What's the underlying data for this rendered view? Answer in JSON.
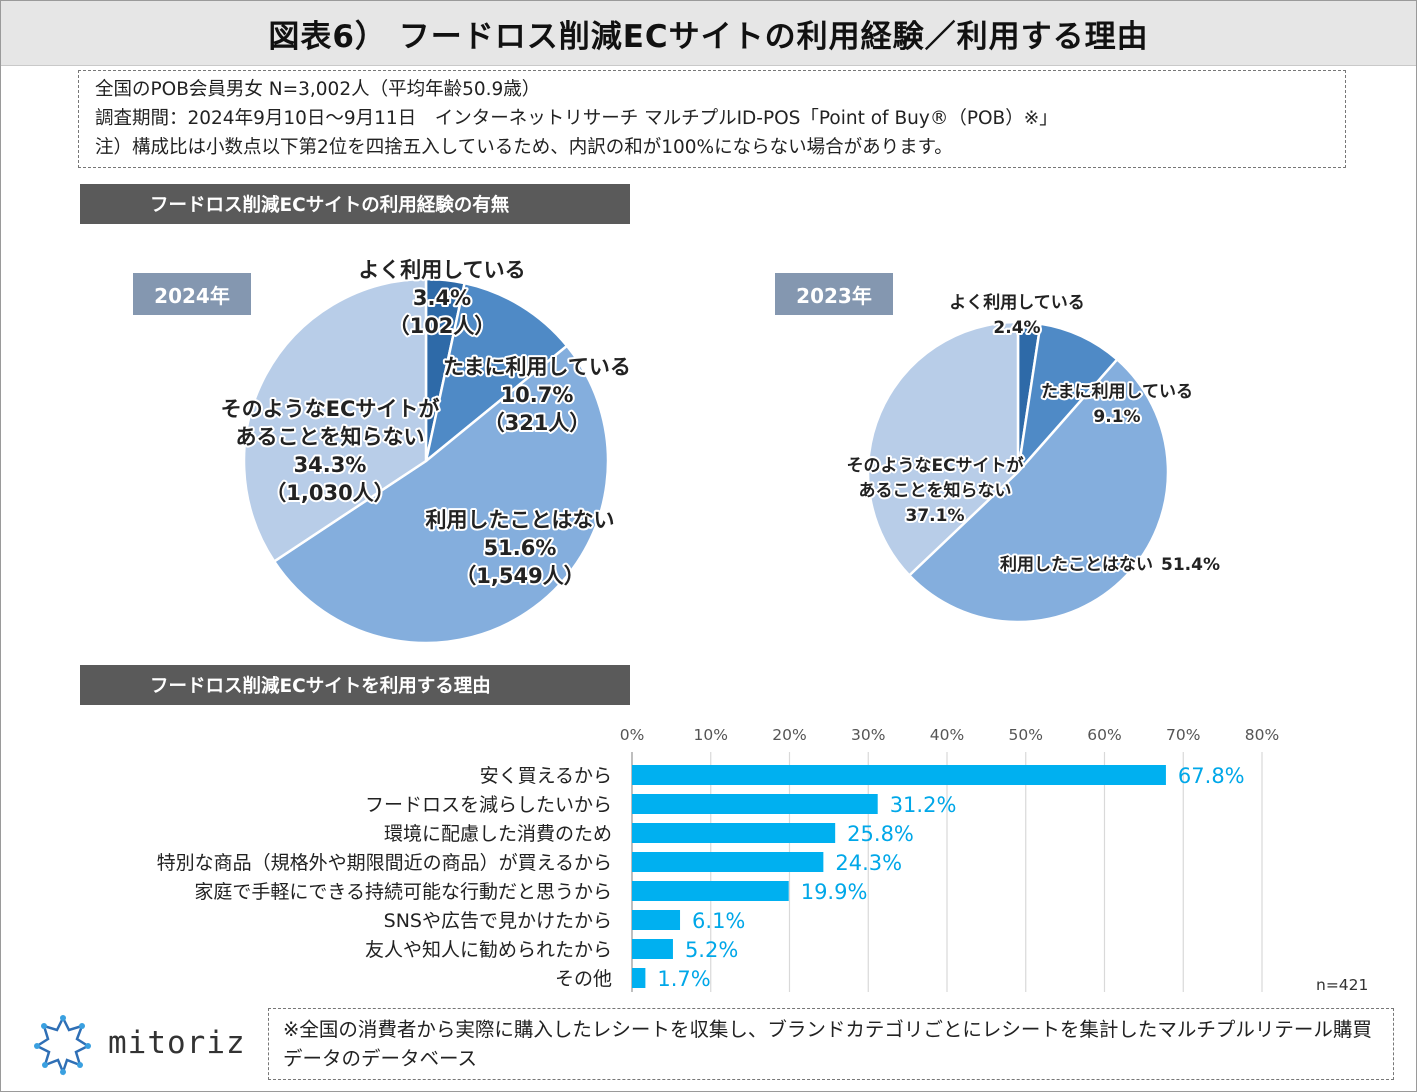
{
  "title": "図表6） フードロス削減ECサイトの利用経験／利用する理由",
  "info": {
    "line1": "全国のPOB会員男女 N=3,002人（平均年齢50.9歳）",
    "line2": "調査期間：2024年9月10日～9月11日　インターネットリサーチ マルチプルID-POS「Point of Buy®（POB）※」",
    "line3": "注）構成比は小数点以下第2位を四捨五入しているため、内訳の和が100%にならない場合があります。"
  },
  "section1_title": "フードロス削減ECサイトの利用経験の有無",
  "section2_title": "フードロス削減ECサイトを利用する理由",
  "colors": {
    "pie_often": "#2e6aa8",
    "pie_sometimes": "#4f8ac6",
    "pie_never": "#84aedd",
    "pie_unaware": "#b8cde8",
    "bar": "#00b0f0",
    "header_bg": "#5a5a5a",
    "year_bg": "#8497b0"
  },
  "chart_data": [
    {
      "type": "pie",
      "title": "2024年",
      "slices": [
        {
          "label": "よく利用している",
          "value": 3.4,
          "display": "3.4%",
          "count": "（102人）"
        },
        {
          "label": "たまに利用している",
          "value": 10.7,
          "display": "10.7%",
          "count": "（321人）"
        },
        {
          "label": "利用したことはない",
          "value": 51.6,
          "display": "51.6%",
          "count": "（1,549人）"
        },
        {
          "label_lines": [
            "そのようなECサイトが",
            "あることを知らない"
          ],
          "value": 34.3,
          "display": "34.3%",
          "count": "（1,030人）"
        }
      ]
    },
    {
      "type": "pie",
      "title": "2023年",
      "slices": [
        {
          "label": "よく利用している",
          "value": 2.4,
          "display": "2.4%"
        },
        {
          "label": "たまに利用している",
          "value": 9.1,
          "display": "9.1%"
        },
        {
          "label": "利用したことはない",
          "value": 51.4,
          "display": "51.4%"
        },
        {
          "label_lines": [
            "そのようなECサイトが",
            "あることを知らない"
          ],
          "value": 37.1,
          "display": "37.1%"
        }
      ]
    },
    {
      "type": "bar",
      "orientation": "horizontal",
      "title": "フードロス削減ECサイトを利用する理由",
      "categories": [
        "安く買えるから",
        "フードロスを減らしたいから",
        "環境に配慮した消費のため",
        "特別な商品（規格外や期限間近の商品）が買えるから",
        "家庭で手軽にできる持続可能な行動だと思うから",
        "SNSや広告で見かけたから",
        "友人や知人に勧められたから",
        "その他"
      ],
      "values": [
        67.8,
        31.2,
        25.8,
        24.3,
        19.9,
        6.1,
        5.2,
        1.7
      ],
      "value_labels": [
        "67.8%",
        "31.2%",
        "25.8%",
        "24.3%",
        "19.9%",
        "6.1%",
        "5.2%",
        "1.7%"
      ],
      "xlim": [
        0,
        80
      ],
      "ticks": [
        0,
        10,
        20,
        30,
        40,
        50,
        60,
        70,
        80
      ],
      "tick_labels": [
        "0%",
        "10%",
        "20%",
        "30%",
        "40%",
        "50%",
        "60%",
        "70%",
        "80%"
      ],
      "grid": true,
      "n_label": "n=421"
    }
  ],
  "logo_text": "mitoriz",
  "footnote": "※全国の消費者から実際に購入したレシートを収集し、ブランドカテゴリごとにレシートを集計したマルチプルリテール購買データのデータベース"
}
